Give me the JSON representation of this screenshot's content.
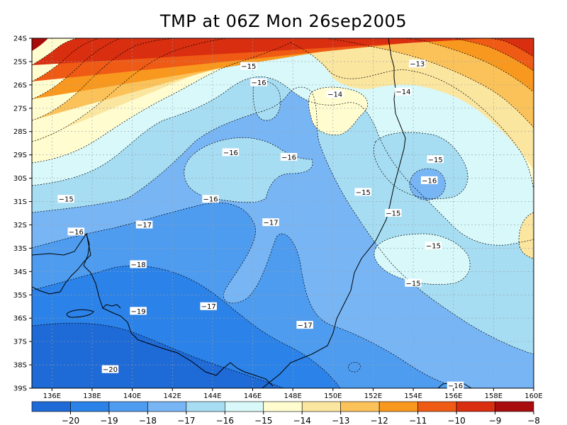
{
  "title": "TMP at 06Z Mon 26sep2005",
  "map": {
    "lon_range": [
      135,
      160
    ],
    "lat_range": [
      -39,
      -24
    ],
    "lon_ticks": [
      "136E",
      "138E",
      "140E",
      "142E",
      "144E",
      "146E",
      "148E",
      "150E",
      "152E",
      "154E",
      "156E",
      "158E",
      "160E"
    ],
    "lat_ticks": [
      "24S",
      "25S",
      "26S",
      "27S",
      "28S",
      "29S",
      "30S",
      "31S",
      "32S",
      "33S",
      "34S",
      "35S",
      "36S",
      "37S",
      "38S",
      "39S"
    ],
    "contour_labels": [
      {
        "text": "-15",
        "lon": 145.8,
        "lat": -25.2
      },
      {
        "text": "-13",
        "lon": 154.2,
        "lat": -25.1
      },
      {
        "text": "-16",
        "lon": 146.3,
        "lat": -25.9
      },
      {
        "text": "-14",
        "lon": 150.1,
        "lat": -26.4
      },
      {
        "text": "-14",
        "lon": 153.5,
        "lat": -26.3
      },
      {
        "text": "-16",
        "lon": 144.9,
        "lat": -28.9
      },
      {
        "text": "-16",
        "lon": 147.8,
        "lat": -29.1
      },
      {
        "text": "-15",
        "lon": 155.1,
        "lat": -29.2
      },
      {
        "text": "-16",
        "lon": 154.8,
        "lat": -30.1
      },
      {
        "text": "-15",
        "lon": 151.5,
        "lat": -30.6
      },
      {
        "text": "-15",
        "lon": 136.7,
        "lat": -30.9
      },
      {
        "text": "-16",
        "lon": 143.9,
        "lat": -30.9
      },
      {
        "text": "-15",
        "lon": 153.0,
        "lat": -31.5
      },
      {
        "text": "-16",
        "lon": 137.2,
        "lat": -32.3
      },
      {
        "text": "-17",
        "lon": 140.6,
        "lat": -32.0
      },
      {
        "text": "-17",
        "lon": 146.9,
        "lat": -31.9
      },
      {
        "text": "-15",
        "lon": 155.0,
        "lat": -32.9
      },
      {
        "text": "-18",
        "lon": 140.3,
        "lat": -33.7
      },
      {
        "text": "-15",
        "lon": 154.0,
        "lat": -34.5
      },
      {
        "text": "-17",
        "lon": 143.8,
        "lat": -35.5
      },
      {
        "text": "-19",
        "lon": 140.3,
        "lat": -35.7
      },
      {
        "text": "-17",
        "lon": 148.6,
        "lat": -36.3
      },
      {
        "text": "-20",
        "lon": 138.9,
        "lat": -38.2
      },
      {
        "text": "-16",
        "lon": 156.1,
        "lat": -38.9
      }
    ]
  },
  "legend": {
    "labels": [
      "-20",
      "-19",
      "-18",
      "-17",
      "-16",
      "-15",
      "-14",
      "-13",
      "-12",
      "-11",
      "-10",
      "-9",
      "-8"
    ],
    "colors": [
      "#1e6ad6",
      "#2b82e8",
      "#4e9cf0",
      "#78b5f5",
      "#a6ddf2",
      "#d8f8fa",
      "#fffdd0",
      "#fbe6a0",
      "#fbc25a",
      "#f8981e",
      "#ef5a14",
      "#d92e10",
      "#a80c0c"
    ]
  },
  "colors": {
    "level_m21": "#1e6ad6",
    "level_m20": "#2b82e8",
    "level_m19": "#4e9cf0",
    "level_m18": "#78b5f5",
    "level_m17": "#a6ddf2",
    "level_m16": "#d8f8fa",
    "level_m15": "#fffdd0",
    "level_m14": "#fbe6a0",
    "level_m13": "#fbc25a",
    "level_m12": "#f8981e",
    "level_m11": "#ef5a14",
    "level_m10": "#d92e10",
    "level_m9": "#a80c0c"
  }
}
